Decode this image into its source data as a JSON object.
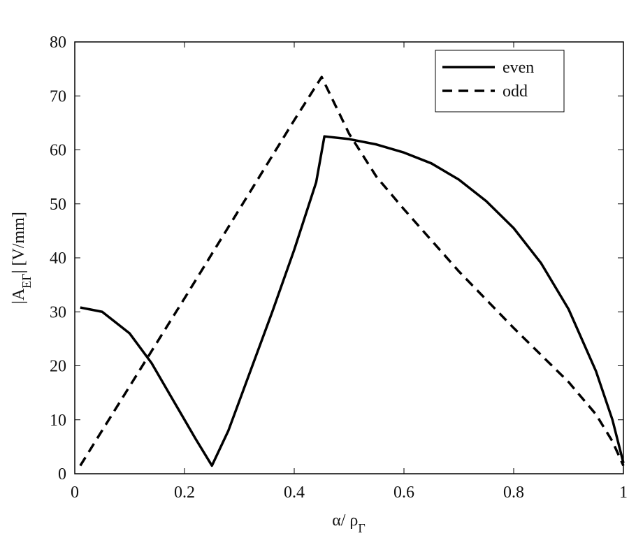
{
  "chart_data": {
    "type": "line",
    "xlabel": [
      "α/ ρ",
      "Γ"
    ],
    "ylabel": [
      "|A",
      "EΓ",
      "| [V/mm]"
    ],
    "xlim": [
      0,
      1
    ],
    "xticks": [
      0,
      0.2,
      0.4,
      0.6,
      0.8,
      1
    ],
    "ylim": [
      0,
      80
    ],
    "yticks": [
      0,
      10,
      20,
      30,
      40,
      50,
      60,
      70,
      80
    ],
    "grid": false,
    "legend": "upper right",
    "series": [
      {
        "name": "even",
        "color": "#000000",
        "dash": "solid",
        "x": [
          0.01,
          0.05,
          0.1,
          0.14,
          0.18,
          0.22,
          0.25,
          0.28,
          0.32,
          0.36,
          0.4,
          0.44,
          0.455,
          0.5,
          0.55,
          0.6,
          0.65,
          0.7,
          0.75,
          0.8,
          0.85,
          0.9,
          0.95,
          0.98,
          0.995,
          1
        ],
        "values": [
          30.8,
          30,
          26,
          20.5,
          13.5,
          6.5,
          1.5,
          8,
          19,
          30,
          41.5,
          54,
          62.5,
          62,
          61,
          59.5,
          57.5,
          54.5,
          50.5,
          45.5,
          39,
          30.5,
          19,
          10,
          4,
          2
        ]
      },
      {
        "name": "odd",
        "color": "#000000",
        "dash": "dashed",
        "x": [
          0.01,
          0.1,
          0.2,
          0.3,
          0.4,
          0.45,
          0.5,
          0.55,
          0.6,
          0.7,
          0.8,
          0.9,
          0.95,
          0.98,
          1
        ],
        "values": [
          1.5,
          16.2,
          32.5,
          49,
          65.5,
          73.5,
          63,
          55,
          49,
          37.5,
          27,
          17,
          11,
          6,
          1.5
        ]
      }
    ]
  }
}
